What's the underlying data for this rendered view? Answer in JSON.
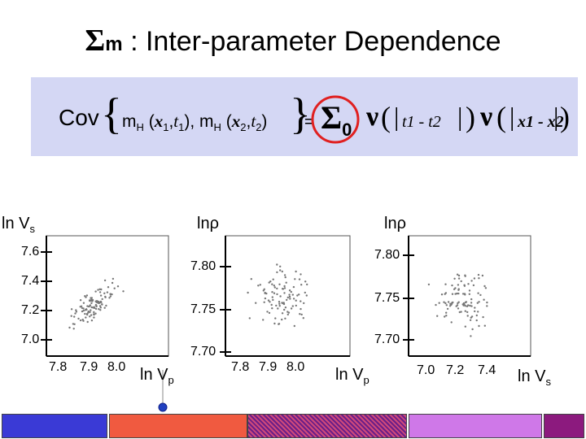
{
  "title": {
    "symbol": "Σ",
    "subscript": "m",
    "text": " : Inter-parameter Dependence"
  },
  "equation": {
    "cov": "Cov",
    "m1": "m",
    "h1": "H",
    "arg1_open": " (",
    "x1": "x",
    "x1_sub": "1",
    "comma1": ",",
    "t1": "t",
    "t1_sub": "1",
    "arg1_close": "), ",
    "m2": "m",
    "h2": "H",
    "arg2_open": " (",
    "x2": "x",
    "x2_sub": "2",
    "comma2": ",",
    "t2": "t",
    "t2_sub": "2",
    "arg2_close": ")",
    "equals": "=",
    "sigma": "Σ",
    "sigma_sub": "0",
    "nu1": "ν",
    "time_diff": "t1 - t2",
    "nu2": "ν",
    "space_diff": "x1 - x2",
    "highlight_color": "#e02020"
  },
  "plots": [
    {
      "ylabel": "ln V",
      "ylabel_sub": "s",
      "xlabel": "ln V",
      "xlabel_sub": "p",
      "yticks": [
        "7.6",
        "7.4",
        "7.2",
        "7.0"
      ],
      "xticks": [
        "7.8",
        "7.9",
        "8.0"
      ]
    },
    {
      "ylabel": "lnρ",
      "xlabel": "ln V",
      "xlabel_sub": "p",
      "yticks": [
        "7.80",
        "7.75",
        "7.70"
      ],
      "xticks": [
        "7.8",
        "7.9",
        "8.0"
      ]
    },
    {
      "ylabel": "lnρ",
      "xlabel": "ln V",
      "xlabel_sub": "s",
      "yticks": [
        "7.80",
        "7.75",
        "7.70"
      ],
      "xticks": [
        "7.0",
        "7.2",
        "7.4"
      ]
    }
  ],
  "footer_bars": [
    {
      "name": "blue",
      "color": "#3a3ad6"
    },
    {
      "name": "red",
      "color": "#f05a40"
    },
    {
      "name": "purple-pattern",
      "color": "#9a3a9a"
    },
    {
      "name": "violet",
      "color": "#cf78e8"
    },
    {
      "name": "dark-purple",
      "color": "#8c1a7e"
    }
  ],
  "colors": {
    "equation_bg": "#d4d7f4",
    "marker": "#2040c0"
  }
}
